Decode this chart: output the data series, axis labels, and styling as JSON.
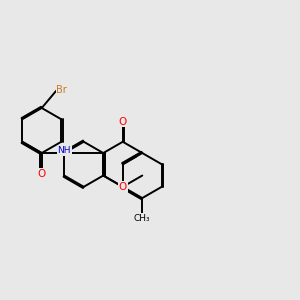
{
  "bg_color": "#e8e8e8",
  "bond_color": "#000000",
  "bond_lw": 1.4,
  "dbo": 0.032,
  "atom_colors": {
    "Br": "#cc7722",
    "O": "#ff0000",
    "N": "#0000cd",
    "C": "#000000"
  },
  "fontsizes": {
    "Br": 7.0,
    "O": 7.5,
    "N": 7.5,
    "CH3": 6.5
  }
}
